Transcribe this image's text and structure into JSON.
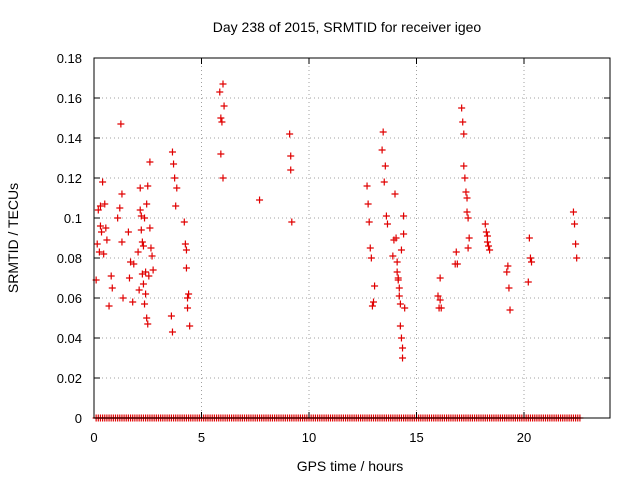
{
  "chart_data": {
    "type": "scatter",
    "title": "Day 238 of 2015, SRMTID for receiver igeo",
    "xlabel": "GPS time / hours",
    "ylabel": "SRMTID / TECUs",
    "xlim": [
      0,
      24
    ],
    "ylim": [
      0,
      0.18
    ],
    "grid": true,
    "marker": "+",
    "color": "#e00000",
    "xticks": [
      0,
      5,
      10,
      15,
      20
    ],
    "xtick_labels": [
      "0",
      "5",
      "10",
      "15",
      "20"
    ],
    "yticks": [
      0,
      0.02,
      0.04,
      0.06,
      0.08,
      0.1,
      0.12,
      0.14,
      0.16,
      0.18
    ],
    "ytick_labels": [
      "0",
      "0.02",
      "0.04",
      "0.06",
      "0.08",
      "0.1",
      "0.12",
      "0.14",
      "0.16",
      "0.18"
    ],
    "series": [
      {
        "name": "SRMTID",
        "x": [
          0.1,
          0.15,
          0.2,
          0.25,
          0.3,
          0.3,
          0.35,
          0.4,
          0.45,
          0.5,
          0.55,
          0.6,
          0.7,
          0.8,
          0.85,
          1.1,
          1.2,
          1.25,
          1.3,
          1.3,
          1.35,
          1.6,
          1.65,
          1.7,
          1.8,
          1.85,
          2.05,
          2.1,
          2.15,
          2.15,
          2.2,
          2.2,
          2.25,
          2.25,
          2.3,
          2.3,
          2.35,
          2.35,
          2.4,
          2.4,
          2.45,
          2.45,
          2.5,
          2.5,
          2.55,
          2.6,
          2.6,
          2.65,
          2.7,
          2.75,
          3.6,
          3.65,
          3.65,
          3.7,
          3.75,
          3.8,
          3.85,
          4.2,
          4.25,
          4.3,
          4.3,
          4.35,
          4.35,
          4.4,
          4.45,
          5.85,
          5.9,
          5.9,
          5.95,
          6.0,
          6.0,
          6.05,
          7.7,
          9.1,
          9.15,
          9.15,
          9.2,
          12.7,
          12.75,
          12.8,
          12.85,
          12.9,
          12.95,
          13.0,
          13.05,
          13.4,
          13.45,
          13.5,
          13.55,
          13.6,
          13.65,
          13.9,
          13.95,
          14.0,
          14.05,
          14.1,
          14.1,
          14.15,
          14.15,
          14.2,
          14.2,
          14.25,
          14.25,
          14.3,
          14.3,
          14.35,
          14.35,
          14.4,
          14.4,
          14.45,
          16.0,
          16.05,
          16.1,
          16.1,
          16.15,
          16.8,
          16.85,
          16.9,
          17.1,
          17.15,
          17.2,
          17.2,
          17.25,
          17.3,
          17.35,
          17.35,
          17.4,
          17.4,
          17.45,
          18.2,
          18.25,
          18.3,
          18.3,
          18.35,
          18.4,
          19.2,
          19.25,
          19.3,
          19.35,
          20.2,
          20.25,
          20.3,
          20.35,
          22.3,
          22.35,
          22.4,
          22.45
        ],
        "y": [
          0.069,
          0.087,
          0.104,
          0.083,
          0.096,
          0.106,
          0.093,
          0.118,
          0.082,
          0.107,
          0.095,
          0.089,
          0.056,
          0.071,
          0.065,
          0.1,
          0.105,
          0.147,
          0.112,
          0.088,
          0.06,
          0.093,
          0.07,
          0.078,
          0.058,
          0.077,
          0.083,
          0.064,
          0.115,
          0.104,
          0.101,
          0.094,
          0.088,
          0.072,
          0.086,
          0.067,
          0.1,
          0.057,
          0.062,
          0.073,
          0.107,
          0.05,
          0.116,
          0.047,
          0.071,
          0.128,
          0.095,
          0.085,
          0.081,
          0.074,
          0.051,
          0.043,
          0.133,
          0.127,
          0.12,
          0.106,
          0.115,
          0.098,
          0.087,
          0.084,
          0.075,
          0.06,
          0.055,
          0.062,
          0.046,
          0.163,
          0.15,
          0.132,
          0.148,
          0.167,
          0.12,
          0.156,
          0.109,
          0.142,
          0.131,
          0.124,
          0.098,
          0.116,
          0.107,
          0.098,
          0.085,
          0.08,
          0.056,
          0.058,
          0.066,
          0.134,
          0.143,
          0.118,
          0.126,
          0.101,
          0.097,
          0.081,
          0.089,
          0.112,
          0.09,
          0.078,
          0.073,
          0.07,
          0.069,
          0.065,
          0.061,
          0.057,
          0.046,
          0.04,
          0.084,
          0.035,
          0.03,
          0.101,
          0.092,
          0.055,
          0.061,
          0.055,
          0.07,
          0.059,
          0.055,
          0.077,
          0.083,
          0.077,
          0.155,
          0.148,
          0.142,
          0.126,
          0.12,
          0.113,
          0.103,
          0.11,
          0.085,
          0.1,
          0.09,
          0.097,
          0.093,
          0.091,
          0.088,
          0.086,
          0.084,
          0.073,
          0.076,
          0.065,
          0.054,
          0.068,
          0.09,
          0.08,
          0.078,
          0.103,
          0.097,
          0.087,
          0.08
        ],
        "zero_x": [
          0.1,
          0.2,
          0.3,
          0.4,
          0.5,
          0.6,
          0.7,
          0.8,
          0.9,
          1.0,
          1.1,
          1.2,
          1.3,
          1.4,
          1.5,
          1.6,
          1.7,
          1.8,
          1.9,
          2.0,
          2.1,
          2.2,
          2.3,
          2.4,
          2.5,
          2.6,
          2.7,
          2.8,
          2.9,
          3.0,
          3.1,
          3.2,
          3.3,
          3.4,
          3.5,
          3.6,
          3.7,
          3.8,
          3.9,
          4.0,
          4.1,
          4.2,
          4.3,
          4.4,
          4.5,
          4.6,
          4.7,
          4.8,
          4.9,
          5.0,
          5.1,
          5.2,
          5.3,
          5.4,
          5.5,
          5.6,
          5.7,
          5.8,
          5.9,
          6.0,
          6.1,
          6.2,
          6.3,
          6.4,
          6.5,
          6.6,
          6.7,
          6.8,
          6.9,
          7.0,
          7.1,
          7.2,
          7.3,
          7.4,
          7.5,
          7.6,
          7.7,
          7.8,
          7.9,
          8.0,
          8.1,
          8.2,
          8.3,
          8.4,
          8.5,
          8.6,
          8.7,
          8.8,
          8.9,
          9.0,
          9.1,
          9.2,
          9.3,
          9.4,
          9.5,
          9.6,
          9.7,
          9.8,
          9.9,
          10.0,
          10.1,
          10.2,
          10.3,
          10.4,
          10.5,
          10.6,
          10.7,
          10.8,
          10.9,
          11.0,
          11.1,
          11.2,
          11.3,
          11.4,
          11.5,
          11.6,
          11.7,
          11.8,
          11.9,
          12.0,
          12.1,
          12.2,
          12.3,
          12.4,
          12.5,
          12.6,
          12.7,
          12.8,
          12.9,
          13.0,
          13.1,
          13.2,
          13.3,
          13.4,
          13.5,
          13.6,
          13.7,
          13.8,
          13.9,
          14.0,
          14.1,
          14.2,
          14.3,
          14.4,
          14.5,
          14.6,
          14.7,
          14.8,
          14.9,
          15.0,
          15.1,
          15.2,
          15.3,
          15.4,
          15.5,
          15.6,
          15.7,
          15.8,
          15.9,
          16.0,
          16.1,
          16.2,
          16.3,
          16.4,
          16.5,
          16.6,
          16.7,
          16.8,
          16.9,
          17.0,
          17.1,
          17.2,
          17.3,
          17.4,
          17.5,
          17.6,
          17.7,
          17.8,
          17.9,
          18.0,
          18.1,
          18.2,
          18.3,
          18.4,
          18.5,
          18.6,
          18.7,
          18.8,
          18.9,
          19.0,
          19.1,
          19.2,
          19.3,
          19.4,
          19.5,
          19.6,
          19.7,
          19.8,
          19.9,
          20.0,
          20.1,
          20.2,
          20.3,
          20.4,
          20.5,
          20.6,
          20.7,
          20.8,
          20.9,
          21.0,
          21.1,
          21.2,
          21.3,
          21.4,
          21.5,
          21.6,
          21.7,
          21.8,
          21.9,
          22.0,
          22.1,
          22.2,
          22.3,
          22.4,
          22.5,
          22.6
        ]
      }
    ]
  }
}
